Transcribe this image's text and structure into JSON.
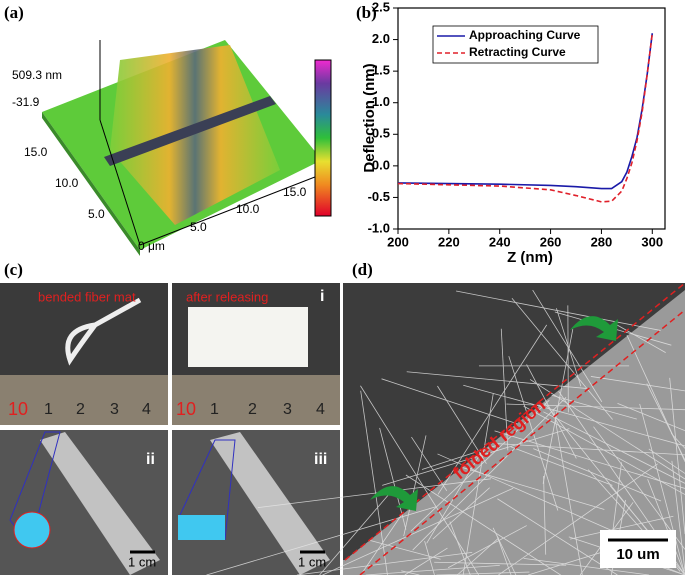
{
  "panel_labels": [
    "(a)",
    "(b)",
    "(c)",
    "(d)"
  ],
  "panel_a": {
    "z_max": "509.3 nm",
    "z_min": "-31.9",
    "y_ticks": [
      "15.0",
      "10.0",
      "5.0"
    ],
    "origin": "0 μm",
    "x_ticks": [
      "5.0",
      "10.0",
      "15.0"
    ]
  },
  "chart_data": {
    "type": "line",
    "xlabel": "Z (nm)",
    "ylabel": "Deflection (nm)",
    "x": [
      200,
      220,
      240,
      260,
      270,
      280,
      284,
      288,
      290,
      292,
      294,
      296,
      298,
      300
    ],
    "series": [
      {
        "name": "Approaching Curve",
        "color": "#1a1aa8",
        "line_style": "solid",
        "values": [
          -0.27,
          -0.28,
          -0.29,
          -0.31,
          -0.33,
          -0.36,
          -0.36,
          -0.25,
          -0.1,
          0.15,
          0.45,
          0.9,
          1.45,
          2.1
        ]
      },
      {
        "name": "Retracting Curve",
        "color": "#e0202a",
        "line_style": "dashed",
        "values": [
          -0.28,
          -0.3,
          -0.32,
          -0.38,
          -0.47,
          -0.57,
          -0.56,
          -0.4,
          -0.2,
          0.05,
          0.4,
          0.85,
          1.45,
          2.1
        ]
      }
    ],
    "xlim": [
      200,
      305
    ],
    "xticks": [
      200,
      220,
      240,
      260,
      280,
      300
    ],
    "ylim": [
      -1,
      2.5
    ],
    "yticks": [
      {
        "value": -1,
        "label": "-1.0"
      },
      -0.5,
      {
        "value": 0,
        "label": "0.0"
      },
      0.5,
      {
        "value": 1,
        "label": "1.0"
      },
      1.5,
      {
        "value": 2,
        "label": "2.0"
      },
      2.5
    ],
    "legend": "upper left"
  },
  "panel_c": {
    "photo_i": {
      "left_caption": "bended fiber mat",
      "right_caption": "after releasing",
      "label": "i",
      "ruler_left": [
        "10",
        "1",
        "2",
        "3",
        "4"
      ],
      "ruler_right": [
        "10",
        "1",
        "2",
        "3",
        "4"
      ]
    },
    "photo_ii": {
      "label": "ii",
      "scale": "1 cm"
    },
    "photo_iii": {
      "label": "iii",
      "scale": "1 cm"
    }
  },
  "panel_d": {
    "annotation": "folded region",
    "scale": "10 um"
  }
}
